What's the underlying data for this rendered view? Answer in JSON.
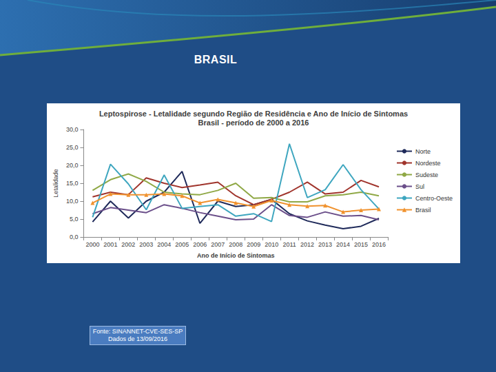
{
  "heading": "BRASIL",
  "source": [
    "Fonte: SINANNET-CVE-SES-SP",
    "Dados de 13/09/2016"
  ],
  "chart_data": {
    "type": "line",
    "title": "Leptospirose - Letalidade segundo Região de Residência e Ano de Início de Sintomas",
    "subtitle": "Brasil - período de 2000 a 2016",
    "x_label": "Ano de Início de Sintomas",
    "y_label": "Letalidade",
    "categories": [
      "2000",
      "2001",
      "2002",
      "2003",
      "2004",
      "2005",
      "2006",
      "2007",
      "2008",
      "2009",
      "2010",
      "2011",
      "2012",
      "2013",
      "2014",
      "2015",
      "2016"
    ],
    "ylim": [
      0,
      30
    ],
    "yticks": [
      {
        "value": 0,
        "label": "0,0"
      },
      {
        "value": 5,
        "label": "5,0"
      },
      {
        "value": 10,
        "label": "10,0"
      },
      {
        "value": 15,
        "label": "15,0"
      },
      {
        "value": 20,
        "label": "20,0"
      },
      {
        "value": 25,
        "label": "25,0"
      },
      {
        "value": 30,
        "label": "30,0"
      }
    ],
    "grid": false,
    "legend": "right",
    "series": [
      {
        "name": "Norte",
        "color": "#1f2a5a",
        "marker": "none",
        "values": [
          4.2,
          10.0,
          5.3,
          10.0,
          12.5,
          18.3,
          3.8,
          10.0,
          8.5,
          9.0,
          10.5,
          6.5,
          4.5,
          3.3,
          2.3,
          3.0,
          5.2
        ]
      },
      {
        "name": "Nordeste",
        "color": "#a0342c",
        "marker": "none",
        "values": [
          11.2,
          12.5,
          11.8,
          16.5,
          15.0,
          13.8,
          14.5,
          15.3,
          11.5,
          9.0,
          10.5,
          12.5,
          15.3,
          12.0,
          12.5,
          15.8,
          14.0
        ]
      },
      {
        "name": "Sudeste",
        "color": "#8fa845",
        "marker": "none",
        "values": [
          13.0,
          16.0,
          17.6,
          15.5,
          12.5,
          12.0,
          11.8,
          13.0,
          15.0,
          10.8,
          11.0,
          9.8,
          9.8,
          11.5,
          11.8,
          12.5,
          11.5
        ]
      },
      {
        "name": "Sul",
        "color": "#6b4f8a",
        "marker": "none",
        "values": [
          6.5,
          8.2,
          7.5,
          6.8,
          9.0,
          8.0,
          6.8,
          5.8,
          4.8,
          5.0,
          9.0,
          6.0,
          5.5,
          7.0,
          5.8,
          6.0,
          4.8
        ]
      },
      {
        "name": "Centro-Oeste",
        "color": "#3ea6bf",
        "marker": "none",
        "values": [
          5.5,
          20.3,
          14.8,
          7.6,
          17.3,
          8.0,
          8.5,
          9.0,
          5.8,
          6.5,
          4.3,
          26.0,
          11.0,
          13.2,
          20.2,
          13.2,
          7.8
        ]
      },
      {
        "name": "Brasil",
        "color": "#f0922e",
        "marker": "triangle",
        "values": [
          9.5,
          12.0,
          11.8,
          11.8,
          12.0,
          11.5,
          9.5,
          10.5,
          9.5,
          8.5,
          10.2,
          9.0,
          8.6,
          8.8,
          7.0,
          7.5,
          7.8
        ]
      }
    ]
  }
}
